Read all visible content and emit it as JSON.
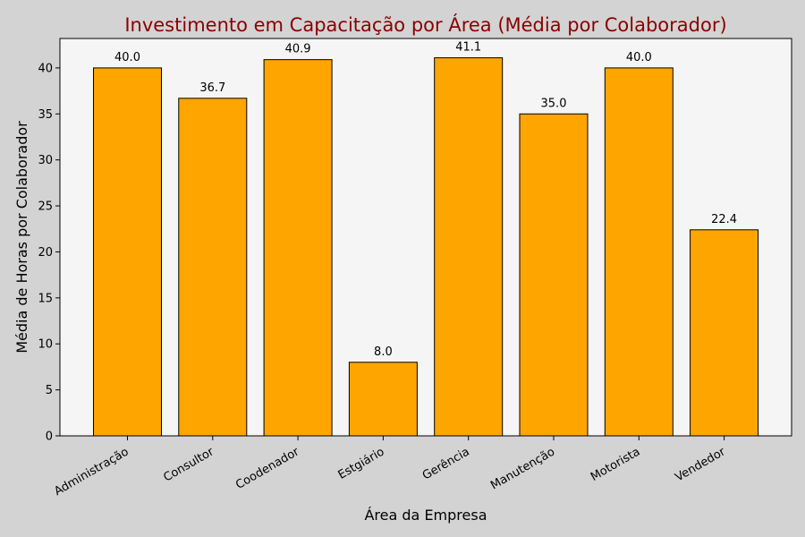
{
  "chart_data": {
    "type": "bar",
    "title": "Investimento em Capacitação por Área (Média por Colaborador)",
    "xlabel": "Área da Empresa",
    "ylabel": "Média de Horas por Colaborador",
    "categories": [
      "Administração",
      "Consultor",
      "Coodenador",
      "Estgiário",
      "Gerência",
      "Manutenção",
      "Motorista",
      "Vendedor"
    ],
    "values": [
      40.0,
      36.7,
      40.9,
      8.0,
      41.1,
      35.0,
      40.0,
      22.4
    ],
    "value_labels": [
      "40.0",
      "36.7",
      "40.9",
      "8.0",
      "41.1",
      "35.0",
      "40.0",
      "22.4"
    ],
    "ylim": [
      0,
      43.2
    ],
    "yticks": [
      0,
      5,
      10,
      15,
      20,
      25,
      30,
      35,
      40
    ],
    "grid": false,
    "legend": "none",
    "colors": {
      "bar": "#ffa500",
      "bar_edge": "#000000",
      "plot_background": "#f5f5f5",
      "figure_background": "#d3d3d3",
      "title": "#8b0000"
    }
  }
}
